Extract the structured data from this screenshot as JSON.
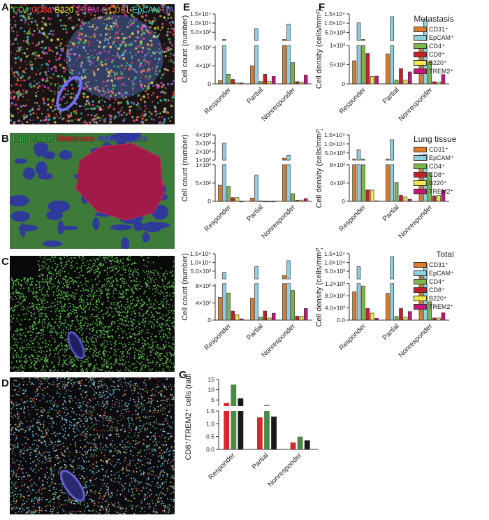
{
  "panels": {
    "A": "A",
    "B": "B",
    "C": "C",
    "D": "D",
    "E": "E",
    "F": "F",
    "G": "G"
  },
  "image_a_legend": [
    {
      "text": "CD4",
      "color": "#3fd43f"
    },
    {
      "text": "CD8a",
      "color": "#ff3b3b"
    },
    {
      "text": "B220",
      "color": "#ffff40"
    },
    {
      "text": "TREM-2",
      "color": "#ff40c0"
    },
    {
      "text": "CD31",
      "color": "#ff9a40"
    },
    {
      "text": "EpCAM",
      "color": "#40e0e0"
    },
    {
      "text": "DAPI",
      "color": "#6a6aff"
    }
  ],
  "image_b_legend": [
    {
      "text": "Lung tissue",
      "color": "#3fcf3f"
    },
    {
      "text": "Metastasis",
      "color": "#ff2a2a"
    },
    {
      "text": "Hollow Space",
      "color": "#5a5aff"
    }
  ],
  "markers": [
    {
      "name": "CD31⁺",
      "color": "#e07b2a"
    },
    {
      "name": "EpCAM⁺",
      "color": "#8ecfe0"
    },
    {
      "name": "CD4⁺",
      "color": "#7bb84a"
    },
    {
      "name": "CD8⁺",
      "color": "#c41f2d"
    },
    {
      "name": "B220⁺",
      "color": "#eee84a"
    },
    {
      "name": "TREM2⁺",
      "color": "#c81479"
    }
  ],
  "legend_titles": [
    "Metastasis",
    "Lung tissue",
    "Total"
  ],
  "chart_data": [
    {
      "type": "bar",
      "panel": "E",
      "group": "Metastasis",
      "ylabel": "Cell count (number)",
      "categories": [
        "Responder",
        "Partial",
        "Nonresponder"
      ],
      "lower": {
        "max": 850,
        "ticks": [
          0,
          400,
          800
        ],
        "tick_labels": [
          "0",
          "4×10²",
          "8×10²"
        ]
      },
      "upper": {
        "min": 500,
        "max": 15000,
        "ticks": [
          5000,
          10000,
          15000
        ],
        "tick_labels": [
          "5.0×10³",
          "1.0×10⁴",
          "1.5×10⁴"
        ]
      },
      "values": [
        [
          75,
          1000,
          210,
          100,
          20,
          20
        ],
        [
          400,
          7000,
          50,
          210,
          50,
          165
        ],
        [
          1000,
          9500,
          470,
          50,
          40,
          195
        ]
      ]
    },
    {
      "type": "bar",
      "panel": "F",
      "group": "Metastasis",
      "ylabel": "Cell density (cells/mm²)",
      "categories": [
        "Responder",
        "Partial",
        "Nonresponder"
      ],
      "lower": {
        "max": 1000,
        "ticks": [
          0,
          500,
          1000
        ],
        "tick_labels": [
          "0",
          "5×10²",
          "1×10³"
        ]
      },
      "upper": {
        "min": 600,
        "max": 15000,
        "ticks": [
          5000,
          10000,
          15000
        ],
        "tick_labels": [
          "5.0×10³",
          "1.0×10⁴",
          "1.5×10⁴"
        ]
      },
      "values": [
        [
          600,
          10200,
          1100,
          790,
          190,
          200
        ],
        [
          780,
          13500,
          100,
          400,
          100,
          310
        ],
        [
          1100,
          11800,
          580,
          55,
          50,
          240
        ]
      ]
    },
    {
      "type": "bar",
      "panel": "E",
      "group": "Lung tissue",
      "ylabel": "Cell count (number)",
      "categories": [
        "Responder",
        "Partial",
        "Nonresponder"
      ],
      "lower": {
        "max": 1000,
        "ticks": [
          0,
          500,
          1000
        ],
        "tick_labels": [
          "0",
          "5×10²",
          "1×10³"
        ]
      },
      "upper": {
        "min": 1000,
        "max": 4000,
        "ticks": [
          1000,
          2000,
          3000,
          4000
        ],
        "tick_labels": [
          "1×10³",
          "2×10³",
          "3×10³",
          "4×10³"
        ]
      },
      "values": [
        [
          440,
          3000,
          410,
          100,
          100,
          0
        ],
        [
          90,
          720,
          10,
          0,
          0,
          0
        ],
        [
          1250,
          1550,
          210,
          30,
          35,
          75
        ]
      ]
    },
    {
      "type": "bar",
      "panel": "F",
      "group": "Lung tissue",
      "ylabel": "Cell density (cells/mm²)",
      "categories": [
        "Responder",
        "Partial",
        "Nonresponder"
      ],
      "lower": {
        "max": 800,
        "ticks": [
          0,
          400,
          800
        ],
        "tick_labels": [
          "0",
          "4×10²",
          "8×10²"
        ]
      },
      "upper": {
        "min": 1000,
        "max": 15000,
        "ticks": [
          5000,
          10000,
          15000
        ],
        "tick_labels": [
          "5.0×10³",
          "1.0×10⁴",
          "1.5×10⁴"
        ]
      },
      "values": [
        [
          1000,
          6800,
          1000,
          250,
          245,
          10
        ],
        [
          1300,
          12300,
          410,
          130,
          95,
          45
        ],
        [
          3800,
          4400,
          630,
          120,
          130,
          240
        ]
      ]
    },
    {
      "type": "bar",
      "panel": "E",
      "group": "Total",
      "ylabel": "Cell count (number)",
      "categories": [
        "Responder",
        "Partial",
        "Nonresponder"
      ],
      "lower": {
        "max": 850,
        "ticks": [
          0,
          400,
          800
        ],
        "tick_labels": [
          "0",
          "4×10²",
          "8×10²"
        ]
      },
      "upper": {
        "min": 500,
        "max": 15000,
        "ticks": [
          5000,
          10000,
          15000
        ],
        "tick_labels": [
          "5.0×10³",
          "1.0×10⁴",
          "1.5×10⁴"
        ]
      },
      "values": [
        [
          530,
          4300,
          630,
          210,
          125,
          30
        ],
        [
          510,
          7600,
          70,
          210,
          50,
          160
        ],
        [
          2500,
          11000,
          690,
          90,
          90,
          270
        ]
      ]
    },
    {
      "type": "bar",
      "panel": "F",
      "group": "Total",
      "ylabel": "Cell density (cells/mm²)",
      "categories": [
        "Responder",
        "Partial",
        "Nonresponder"
      ],
      "lower": {
        "max": 1200,
        "ticks": [
          0,
          400,
          800,
          1200
        ],
        "tick_labels": [
          "0.0",
          "4.0×10²",
          "8.0×10²",
          "1.2×10³"
        ]
      },
      "upper": {
        "min": 600,
        "max": 15000,
        "ticks": [
          5000,
          10000,
          15000
        ],
        "tick_labels": [
          "5.0×10³",
          "1.0×10⁴",
          "1.5×10⁴"
        ]
      },
      "values": [
        [
          930,
          7600,
          1120,
          380,
          230,
          60
        ],
        [
          880,
          13300,
          120,
          380,
          95,
          280
        ],
        [
          2000,
          9600,
          600,
          70,
          70,
          240
        ]
      ]
    },
    {
      "type": "bar",
      "panel": "G",
      "ylabel": "CD8⁺/TREM2⁺ cells (ratio)",
      "categories": [
        "Responder",
        "Partial",
        "Nonresponder"
      ],
      "series_colors": [
        "#d9252f",
        "#4a8a48",
        "#1a1a1a"
      ],
      "lower": {
        "max": 1.5,
        "ticks": [
          0,
          0.5,
          1.0,
          1.5
        ],
        "tick_labels": [
          "0.0",
          "0.5",
          "1.0",
          "1.5"
        ]
      },
      "upper": {
        "min": 2,
        "max": 15,
        "ticks": [
          5,
          10,
          15
        ],
        "tick_labels": [
          "5",
          "10",
          "15"
        ]
      },
      "values": [
        [
          3.5,
          12.5,
          5.8
        ],
        [
          1.25,
          2.5,
          1.28
        ],
        [
          0.27,
          0.5,
          0.35
        ]
      ]
    }
  ]
}
